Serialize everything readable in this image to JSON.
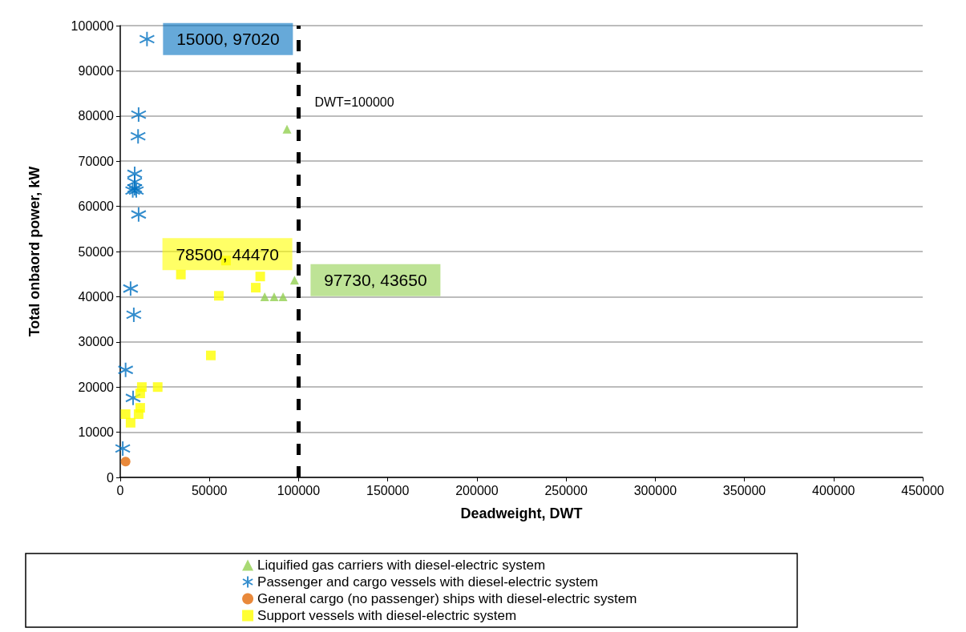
{
  "chart_data": {
    "type": "scatter",
    "xlabel": "Deadweight, DWT",
    "ylabel": "Total onbaord power, kW",
    "xlim": [
      0,
      450000
    ],
    "xticks": [
      0,
      50000,
      100000,
      150000,
      200000,
      250000,
      300000,
      350000,
      400000,
      450000
    ],
    "ylim": [
      0,
      100000
    ],
    "yticks": [
      0,
      10000,
      20000,
      30000,
      40000,
      50000,
      60000,
      70000,
      80000,
      90000,
      100000
    ],
    "grid": "y",
    "legend": "bottom",
    "series": [
      {
        "name": "Liquified gas carriers with diesel-electric system",
        "color": "#92d050",
        "marker": "triangle",
        "x": [
          81000,
          86300,
          91300,
          97730,
          93500
        ],
        "values": [
          40000,
          40000,
          40000,
          43650,
          77100
        ]
      },
      {
        "name": "Passenger and cargo vessels with diesel-electric system",
        "color": "#0070c0",
        "marker": "cross",
        "x": [
          15000,
          10300,
          10000,
          8100,
          8100,
          8100,
          7000,
          9000,
          10300,
          5800,
          7600,
          3000,
          7200,
          1400
        ],
        "values": [
          97020,
          80300,
          75500,
          67200,
          65400,
          64000,
          63500,
          63500,
          58200,
          41800,
          36000,
          23800,
          17600,
          6400
        ]
      },
      {
        "name": "General cargo (no passenger) ships with diesel-electric system",
        "color": "#e46c0a",
        "marker": "circle",
        "x": [
          3000
        ],
        "values": [
          3500
        ]
      },
      {
        "name": "Support vessels with diesel-electric system",
        "color": "#ffff00",
        "marker": "square",
        "x": [
          34000,
          59300,
          78500,
          76000,
          55300,
          50800,
          12100,
          21000,
          11200,
          11200,
          10300,
          3000,
          5800
        ],
        "values": [
          44900,
          48000,
          44470,
          42000,
          40200,
          27000,
          20000,
          20000,
          18600,
          15400,
          14000,
          14000,
          12100
        ]
      }
    ],
    "ref_lines": [
      {
        "axis": "x",
        "value": 100000,
        "label": "DWT=100000",
        "color": "#000000",
        "line_style": "dashed"
      }
    ],
    "annotations": [
      {
        "text": "15000, 97020",
        "x": 15000,
        "y": 97020
      },
      {
        "text": "78500, 44470",
        "x": 78500,
        "y": 44470
      },
      {
        "text": "97730, 43650",
        "x": 97730,
        "y": 43650
      }
    ]
  }
}
